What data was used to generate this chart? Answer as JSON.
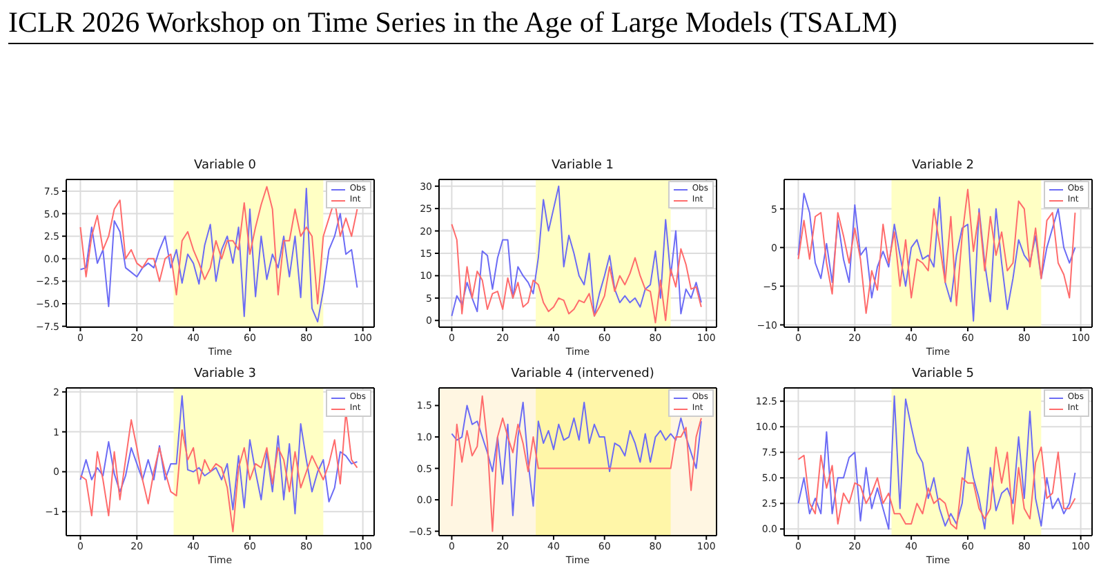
{
  "chart_data": [
    {
      "type": "line",
      "title": "Variable 0",
      "xlabel": "Time",
      "annotations": [
        "ICLR 2026 Workshop on Time Series in the Age of Large Models (TSALM)"
      ],
      "legend": "top right",
      "grid": true,
      "marker": "none",
      "line_style": "solid",
      "xlim": [
        -5,
        104
      ],
      "xticks": [
        0,
        20,
        40,
        60,
        80,
        100
      ],
      "ylim": [
        -7.6,
        8.8
      ],
      "yticks": [
        {
          "value": -7.5,
          "label": "−7.5"
        },
        {
          "value": -5,
          "label": "−5.0"
        },
        {
          "value": -2.5,
          "label": "−2.5"
        },
        {
          "value": 0,
          "label": "0.0"
        },
        {
          "value": 2.5,
          "label": "2.5"
        },
        {
          "value": 5,
          "label": "5.0"
        },
        {
          "value": 7.5,
          "label": "7.5"
        }
      ],
      "bands": [
        {
          "axis": "x",
          "from": 33,
          "to": 86,
          "color": "#ffffc4"
        }
      ],
      "x": [
        0,
        2,
        4,
        6,
        8,
        10,
        12,
        14,
        16,
        18,
        20,
        22,
        24,
        26,
        28,
        30,
        32,
        34,
        36,
        38,
        40,
        42,
        44,
        46,
        48,
        50,
        52,
        54,
        56,
        58,
        60,
        62,
        64,
        66,
        68,
        70,
        72,
        74,
        76,
        78,
        80,
        82,
        84,
        86,
        88,
        90,
        92,
        94,
        96,
        98
      ],
      "series": [
        {
          "name": "Obs",
          "color": "#6b6bf5",
          "values": [
            -1.2,
            -1.0,
            3.5,
            -0.5,
            1.0,
            -5.3,
            4.2,
            3.0,
            -1.0,
            -1.5,
            -2.0,
            -1.0,
            -0.5,
            -1.0,
            1.0,
            2.5,
            -1.0,
            1.0,
            -2.7,
            0.5,
            -0.5,
            -2.8,
            1.5,
            3.8,
            -2.5,
            1.0,
            2.5,
            -0.5,
            3.5,
            -6.4,
            5.5,
            -4.2,
            2.5,
            -2.3,
            0.5,
            -1.0,
            2.5,
            -2.0,
            2.5,
            -4.3,
            7.8,
            -5.5,
            -7.0,
            -3.5,
            1.0,
            2.5,
            5.0,
            0.5,
            1.0,
            -3.2
          ]
        },
        {
          "name": "Int",
          "color": "#ff6b6b",
          "values": [
            3.5,
            -2.0,
            2.5,
            4.8,
            1.0,
            2.5,
            5.5,
            6.5,
            0.0,
            1.0,
            -0.5,
            -1.0,
            0.0,
            0.0,
            -2.5,
            0.0,
            0.5,
            -4.0,
            2.0,
            3.0,
            1.0,
            -0.5,
            -2.3,
            -1.0,
            2.0,
            0.0,
            2.0,
            2.0,
            1.0,
            6.2,
            0.5,
            3.5,
            6.0,
            8.0,
            5.5,
            -4.0,
            2.0,
            2.0,
            5.5,
            2.5,
            3.5,
            2.5,
            -5.0,
            2.5,
            4.5,
            6.5,
            2.5,
            4.5,
            2.5,
            5.5
          ]
        }
      ]
    },
    {
      "type": "line",
      "title": "Variable 1",
      "xlabel": "Time",
      "legend": "top right",
      "grid": true,
      "marker": "none",
      "line_style": "solid",
      "xlim": [
        -5,
        104
      ],
      "xticks": [
        0,
        20,
        40,
        60,
        80,
        100
      ],
      "ylim": [
        -1.5,
        31.5
      ],
      "yticks": [
        0,
        5,
        10,
        15,
        20,
        25,
        30
      ],
      "bands": [
        {
          "axis": "x",
          "from": 33,
          "to": 86,
          "color": "#ffffc4"
        }
      ],
      "x": [
        0,
        2,
        4,
        6,
        8,
        10,
        12,
        14,
        16,
        18,
        20,
        22,
        24,
        26,
        28,
        30,
        32,
        34,
        36,
        38,
        40,
        42,
        44,
        46,
        48,
        50,
        52,
        54,
        56,
        58,
        60,
        62,
        64,
        66,
        68,
        70,
        72,
        74,
        76,
        78,
        80,
        82,
        84,
        86,
        88,
        90,
        92,
        94,
        96,
        98
      ],
      "series": [
        {
          "name": "Obs",
          "color": "#6b6bf5",
          "values": [
            1,
            5.5,
            3.5,
            8.5,
            5,
            2,
            15.5,
            14.5,
            7,
            14,
            18,
            18,
            5,
            12,
            10,
            8.5,
            6,
            14,
            27,
            20,
            25,
            30,
            12,
            19,
            15,
            10,
            8,
            15,
            1,
            6,
            10,
            14.5,
            7,
            4,
            5.5,
            4,
            5,
            3,
            7,
            8,
            15.5,
            5,
            22.5,
            10,
            20,
            1.5,
            7,
            5,
            8.5,
            4
          ]
        },
        {
          "name": "Int",
          "color": "#ff6b6b",
          "values": [
            21.5,
            18,
            1.5,
            12,
            5,
            11,
            9,
            2.5,
            6,
            6.5,
            2.5,
            9.5,
            5,
            8.5,
            3,
            4,
            9,
            8,
            4,
            2,
            3,
            5,
            4.5,
            1.5,
            2.5,
            4.5,
            4,
            6,
            1,
            3,
            5.5,
            12,
            6.5,
            10,
            8,
            10.5,
            14,
            10,
            7,
            6.5,
            -0.5,
            9,
            0,
            11.5,
            7.5,
            16,
            12.5,
            7,
            7.5,
            3
          ]
        }
      ]
    },
    {
      "type": "line",
      "title": "Variable 2",
      "xlabel": "Time",
      "legend": "top right",
      "grid": true,
      "marker": "none",
      "line_style": "solid",
      "xlim": [
        -5,
        104
      ],
      "xticks": [
        0,
        20,
        40,
        60,
        80,
        100
      ],
      "ylim": [
        -10.3,
        8.8
      ],
      "yticks": [
        {
          "value": -10,
          "label": "−10"
        },
        {
          "value": -5,
          "label": "−5"
        },
        0,
        5
      ],
      "bands": [
        {
          "axis": "x",
          "from": 33,
          "to": 86,
          "color": "#ffffc4"
        }
      ],
      "x": [
        0,
        2,
        4,
        6,
        8,
        10,
        12,
        14,
        16,
        18,
        20,
        22,
        24,
        26,
        28,
        30,
        32,
        34,
        36,
        38,
        40,
        42,
        44,
        46,
        48,
        50,
        52,
        54,
        56,
        58,
        60,
        62,
        64,
        66,
        68,
        70,
        72,
        74,
        76,
        78,
        80,
        82,
        84,
        86,
        88,
        90,
        92,
        94,
        96,
        98
      ],
      "series": [
        {
          "name": "Obs",
          "color": "#6b6bf5",
          "values": [
            -1,
            7,
            4.5,
            -2,
            -4,
            0.5,
            -4.5,
            3.5,
            -1.5,
            -4.5,
            5.5,
            -1,
            0,
            -6.5,
            -2.5,
            -0.5,
            -2.5,
            3,
            -1,
            -5,
            0,
            1,
            -1.5,
            -1,
            -2.5,
            6.5,
            -4.5,
            -7,
            -1,
            2.5,
            3,
            -9.5,
            5,
            -2,
            -7,
            5,
            -2,
            -8,
            -4,
            1,
            -1,
            -2,
            1.5,
            -4,
            0,
            2.5,
            5,
            0,
            -2,
            0
          ]
        },
        {
          "name": "Int",
          "color": "#ff6b6b",
          "values": [
            -1.5,
            3.5,
            -1.5,
            4,
            4.5,
            -2,
            -6,
            4.5,
            1.5,
            -2,
            2.5,
            -1.5,
            -8.5,
            -3,
            -5.5,
            3,
            -2,
            2,
            -5,
            1,
            -6.5,
            -1.5,
            -2,
            -3,
            5,
            0.5,
            -4.5,
            4,
            -7.5,
            1.5,
            7.5,
            -0.5,
            4.5,
            -3,
            4,
            -1,
            2,
            -3,
            -2,
            6,
            5,
            -2.5,
            2.5,
            -4,
            3.5,
            4.5,
            -2,
            -3.5,
            -6.5,
            4.5
          ]
        }
      ]
    },
    {
      "type": "line",
      "title": "Variable 3",
      "xlabel": "Time",
      "legend": "top right",
      "grid": true,
      "marker": "none",
      "line_style": "solid",
      "xlim": [
        -5,
        104
      ],
      "xticks": [
        0,
        20,
        40,
        60,
        80,
        100
      ],
      "ylim": [
        -1.6,
        2.1
      ],
      "yticks": [
        {
          "value": -1,
          "label": "−1"
        },
        0,
        1,
        2
      ],
      "bands": [
        {
          "axis": "x",
          "from": 33,
          "to": 86,
          "color": "#ffffc4"
        }
      ],
      "x": [
        0,
        2,
        4,
        6,
        8,
        10,
        12,
        14,
        16,
        18,
        20,
        22,
        24,
        26,
        28,
        30,
        32,
        34,
        36,
        38,
        40,
        42,
        44,
        46,
        48,
        50,
        52,
        54,
        56,
        58,
        60,
        62,
        64,
        66,
        68,
        70,
        72,
        74,
        76,
        78,
        80,
        82,
        84,
        86,
        88,
        90,
        92,
        94,
        96,
        98
      ],
      "series": [
        {
          "name": "Obs",
          "color": "#6b6bf5",
          "values": [
            -0.2,
            0.3,
            -0.2,
            0.1,
            -0.1,
            0.75,
            -0.05,
            -0.5,
            -0.1,
            0.6,
            0.2,
            -0.2,
            0.3,
            -0.2,
            0.65,
            -0.2,
            0.2,
            0.2,
            1.9,
            0.05,
            0.0,
            0.1,
            -0.1,
            0.0,
            0.1,
            -0.2,
            0.2,
            -0.95,
            0.4,
            -0.9,
            0.8,
            0.0,
            -0.7,
            0.5,
            -0.5,
            0.9,
            -0.7,
            0.7,
            -1.05,
            1.2,
            0.3,
            -0.5,
            0.0,
            0.3,
            -0.75,
            -0.4,
            0.5,
            0.4,
            0.2,
            0.25
          ]
        },
        {
          "name": "Int",
          "color": "#ff6b6b",
          "values": [
            -0.1,
            -0.2,
            -1.1,
            0.5,
            -0.2,
            -1.1,
            0.5,
            -0.7,
            0.3,
            1.3,
            0.6,
            -0.2,
            -0.8,
            0.0,
            0.6,
            0.0,
            -0.5,
            -0.6,
            1.05,
            0.3,
            0.6,
            -0.3,
            0.3,
            0.0,
            0.2,
            0.1,
            -0.4,
            -1.5,
            0.1,
            0.6,
            -0.2,
            0.2,
            0.1,
            0.6,
            -0.3,
            0.6,
            0.3,
            -0.5,
            0.5,
            -0.4,
            0.0,
            0.4,
            0.1,
            -0.2,
            0.2,
            0.8,
            -0.3,
            1.5,
            0.3,
            0.1
          ]
        }
      ]
    },
    {
      "type": "line",
      "title": "Variable 4 (intervened)",
      "xlabel": "Time",
      "legend": "top right",
      "grid": true,
      "marker": "none",
      "line_style": "solid",
      "xlim": [
        -5,
        104
      ],
      "xticks": [
        0,
        20,
        40,
        60,
        80,
        100
      ],
      "ylim": [
        -0.57,
        1.78
      ],
      "yticks": [
        {
          "value": -0.5,
          "label": "−0.5"
        },
        {
          "value": 0,
          "label": "0.0"
        },
        {
          "value": 0.5,
          "label": "0.5"
        },
        {
          "value": 1,
          "label": "1.0"
        },
        {
          "value": 1.5,
          "label": "1.5"
        }
      ],
      "bands": [
        {
          "axis": "x",
          "from": -5,
          "to": 104,
          "color": "#fff6e2"
        },
        {
          "axis": "x",
          "from": 33,
          "to": 86,
          "color": "#fff6a8"
        }
      ],
      "x": [
        0,
        2,
        4,
        6,
        8,
        10,
        12,
        14,
        16,
        18,
        20,
        22,
        24,
        26,
        28,
        30,
        32,
        34,
        36,
        38,
        40,
        42,
        44,
        46,
        48,
        50,
        52,
        54,
        56,
        58,
        60,
        62,
        64,
        66,
        68,
        70,
        72,
        74,
        76,
        78,
        80,
        82,
        84,
        86,
        88,
        90,
        92,
        94,
        96,
        98
      ],
      "series": [
        {
          "name": "Obs",
          "color": "#6b6bf5",
          "values": [
            1.05,
            0.95,
            1.0,
            1.5,
            1.2,
            1.25,
            1.0,
            0.75,
            0.45,
            1.0,
            0.25,
            1.2,
            -0.25,
            1.0,
            1.55,
            0.6,
            -0.1,
            1.25,
            0.9,
            1.1,
            0.8,
            1.2,
            0.95,
            1.0,
            1.3,
            0.95,
            1.55,
            0.9,
            1.2,
            1.0,
            1.0,
            0.45,
            0.9,
            0.85,
            0.7,
            1.1,
            0.9,
            0.6,
            1.05,
            0.6,
            1.0,
            1.1,
            0.95,
            1.05,
            0.95,
            1.3,
            1.0,
            0.75,
            0.5,
            1.25
          ]
        },
        {
          "name": "Int",
          "color": "#ff6b6b",
          "values": [
            -0.1,
            1.2,
            0.6,
            1.1,
            0.7,
            0.85,
            1.65,
            0.9,
            -0.5,
            1.0,
            1.3,
            1.0,
            0.75,
            1.2,
            0.9,
            0.45,
            1.0,
            0.5,
            0.5,
            0.5,
            0.5,
            0.5,
            0.5,
            0.5,
            0.5,
            0.5,
            0.5,
            0.5,
            0.5,
            0.5,
            0.5,
            0.5,
            0.5,
            0.5,
            0.5,
            0.5,
            0.5,
            0.5,
            0.5,
            0.5,
            0.5,
            0.5,
            0.5,
            0.5,
            1.0,
            1.0,
            1.15,
            0.15,
            1.0,
            1.3
          ]
        }
      ]
    },
    {
      "type": "line",
      "title": "Variable 5",
      "xlabel": "Time",
      "legend": "top right",
      "grid": true,
      "marker": "none",
      "line_style": "solid",
      "xlim": [
        -5,
        104
      ],
      "xticks": [
        0,
        20,
        40,
        60,
        80,
        100
      ],
      "ylim": [
        -0.65,
        13.8
      ],
      "yticks": [
        {
          "value": 0,
          "label": "0.0"
        },
        {
          "value": 2.5,
          "label": "2.5"
        },
        {
          "value": 5,
          "label": "5.0"
        },
        {
          "value": 7.5,
          "label": "7.5"
        },
        {
          "value": 10,
          "label": "10.0"
        },
        {
          "value": 12.5,
          "label": "12.5"
        }
      ],
      "bands": [
        {
          "axis": "x",
          "from": 33,
          "to": 86,
          "color": "#ffffc4"
        }
      ],
      "x": [
        0,
        2,
        4,
        6,
        8,
        10,
        12,
        14,
        16,
        18,
        20,
        22,
        24,
        26,
        28,
        30,
        32,
        34,
        36,
        38,
        40,
        42,
        44,
        46,
        48,
        50,
        52,
        54,
        56,
        58,
        60,
        62,
        64,
        66,
        68,
        70,
        72,
        74,
        76,
        78,
        80,
        82,
        84,
        86,
        88,
        90,
        92,
        94,
        96,
        98
      ],
      "series": [
        {
          "name": "Obs",
          "color": "#6b6bf5",
          "values": [
            2.5,
            5,
            1.5,
            3,
            1.5,
            9.5,
            1.5,
            5,
            5,
            7,
            7.5,
            0.8,
            6,
            2,
            4,
            2,
            0,
            13,
            2,
            12.7,
            10,
            7.5,
            6.5,
            3,
            5,
            2,
            0.3,
            1.5,
            0.5,
            2.5,
            8,
            5,
            3,
            0,
            6,
            1.8,
            3.5,
            4,
            2.5,
            9,
            3,
            11.5,
            3,
            0.3,
            5,
            2,
            3,
            1.5,
            2.5,
            5.5
          ]
        },
        {
          "name": "Int",
          "color": "#ff6b6b",
          "values": [
            6.8,
            7.2,
            2.5,
            1.5,
            7.2,
            4,
            6.2,
            0.5,
            3.5,
            2.5,
            4.5,
            4.2,
            2.5,
            3.5,
            5,
            2.5,
            3.5,
            1.5,
            1.5,
            0.5,
            0.5,
            2.5,
            1.5,
            4,
            2.5,
            3,
            2.5,
            0.5,
            0,
            5,
            4.5,
            4.5,
            2,
            1,
            2,
            8,
            4.5,
            7.5,
            0.5,
            6,
            2,
            1,
            6.5,
            8,
            3,
            3.5,
            7.5,
            2,
            2,
            3
          ]
        }
      ]
    }
  ]
}
